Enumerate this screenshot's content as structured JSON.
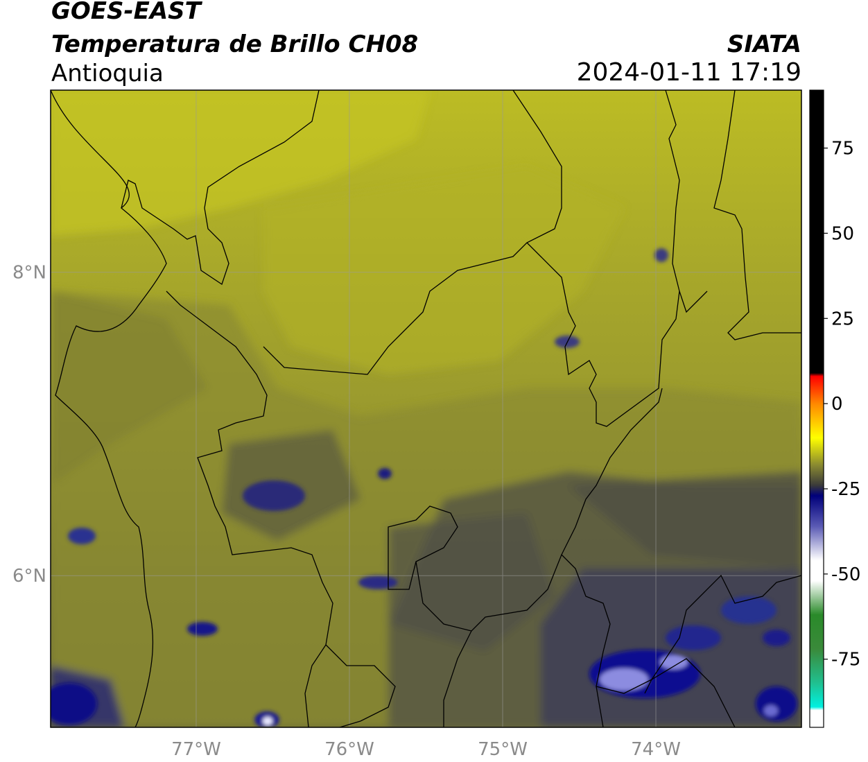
{
  "header": {
    "satellite": "GOES-EAST",
    "product": "Temperatura de Brillo CH08",
    "region": "Antioquia",
    "agency": "SIATA",
    "datetime": "2024-01-11 17:19"
  },
  "map": {
    "lon_range": [
      -77.95,
      -73.05
    ],
    "lat_range": [
      5.0,
      9.2
    ],
    "lon_ticks": [
      {
        "value": -77,
        "label": "77°W"
      },
      {
        "value": -76,
        "label": "76°W"
      },
      {
        "value": -75,
        "label": "75°W"
      },
      {
        "value": -74,
        "label": "74°W"
      }
    ],
    "lat_ticks": [
      {
        "value": 8,
        "label": "8°N"
      },
      {
        "value": 6,
        "label": "6°N"
      }
    ],
    "grid": true,
    "colors": {
      "warm_yellow": "#b8b824",
      "olive": "#8c8c2c",
      "dark_olive": "#5a5a3c",
      "gray": "#4a4a4a",
      "navy": "#1c2470",
      "deep_blue": "#0a0a8c",
      "light_blue": "#c8c8f0"
    }
  },
  "colorbar": {
    "range": [
      -95,
      92
    ],
    "ticks": [
      {
        "value": 75,
        "label": "75"
      },
      {
        "value": 50,
        "label": "50"
      },
      {
        "value": 25,
        "label": "25"
      },
      {
        "value": 0,
        "label": "0"
      },
      {
        "value": -25,
        "label": "-25"
      },
      {
        "value": -50,
        "label": "-50"
      },
      {
        "value": -75,
        "label": "-75"
      }
    ],
    "stops": [
      {
        "value": 92,
        "color": "#000000"
      },
      {
        "value": 9,
        "color": "#000000"
      },
      {
        "value": 8,
        "color": "#ff0000"
      },
      {
        "value": 0,
        "color": "#ff8800"
      },
      {
        "value": -10,
        "color": "#ffff00"
      },
      {
        "value": -18,
        "color": "#8a8a30"
      },
      {
        "value": -24,
        "color": "#3a3a3a"
      },
      {
        "value": -27,
        "color": "#00007a"
      },
      {
        "value": -36,
        "color": "#5a5ab4"
      },
      {
        "value": -46,
        "color": "#ffffff"
      },
      {
        "value": -52,
        "color": "#ffffff"
      },
      {
        "value": -62,
        "color": "#2a8a2a"
      },
      {
        "value": -72,
        "color": "#3a8a3a"
      },
      {
        "value": -82,
        "color": "#20c090"
      },
      {
        "value": -89,
        "color": "#00f0e0"
      },
      {
        "value": -90,
        "color": "#ffffff"
      },
      {
        "value": -95,
        "color": "#ffffff"
      }
    ]
  }
}
